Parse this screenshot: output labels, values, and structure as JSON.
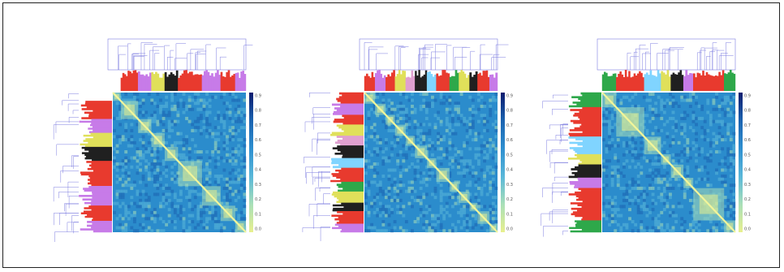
{
  "figure": {
    "background": "#ffffff",
    "border_color": "#222222"
  },
  "chart_data": [
    {
      "type": "heatmap",
      "title": "",
      "subtitle": "",
      "colorbar_ticks": [
        "0.9",
        "0.8",
        "0.7",
        "0.6",
        "0.5",
        "0.4",
        "0.3",
        "0.2",
        "0.1",
        "0.0"
      ],
      "colorscale": [
        "#0d1b6e",
        "#1b63b0",
        "#2e8fd0",
        "#59b7d9",
        "#a8dfb8",
        "#e8f08e"
      ],
      "modules": [
        {
          "color": "#ffffff",
          "size": 6
        },
        {
          "color": "#e83a2e",
          "size": 13
        },
        {
          "color": "#c77be8",
          "size": 10
        },
        {
          "color": "#e0e05a",
          "size": 10
        },
        {
          "color": "#202020",
          "size": 10
        },
        {
          "color": "#e83a2e",
          "size": 18
        },
        {
          "color": "#c77be8",
          "size": 14
        },
        {
          "color": "#e83a2e",
          "size": 11
        },
        {
          "color": "#c77be8",
          "size": 8
        }
      ]
    },
    {
      "type": "heatmap",
      "title": "",
      "subtitle": "",
      "colorbar_ticks": [
        "0.9",
        "0.8",
        "0.7",
        "0.6",
        "0.5",
        "0.4",
        "0.3",
        "0.2",
        "0.1",
        "0.0"
      ],
      "colorscale": [
        "#0d1b6e",
        "#1b63b0",
        "#2e8fd0",
        "#59b7d9",
        "#a8dfb8",
        "#e8f08e"
      ],
      "modules": [
        {
          "color": "#e83a2e",
          "size": 8
        },
        {
          "color": "#c77be8",
          "size": 8
        },
        {
          "color": "#e83a2e",
          "size": 7
        },
        {
          "color": "#e0e05a",
          "size": 8
        },
        {
          "color": "#e0a0d0",
          "size": 7
        },
        {
          "color": "#202020",
          "size": 9
        },
        {
          "color": "#80d4ff",
          "size": 7
        },
        {
          "color": "#e83a2e",
          "size": 10
        },
        {
          "color": "#2ea84a",
          "size": 7
        },
        {
          "color": "#e0e05a",
          "size": 8
        },
        {
          "color": "#202020",
          "size": 6
        },
        {
          "color": "#e83a2e",
          "size": 9
        },
        {
          "color": "#c77be8",
          "size": 6
        }
      ]
    },
    {
      "type": "heatmap",
      "title": "",
      "subtitle": "",
      "colorbar_ticks": [
        "0.9",
        "0.8",
        "0.7",
        "0.6",
        "0.5",
        "0.4",
        "0.3",
        "0.2",
        "0.1",
        "0.0"
      ],
      "colorscale": [
        "#0d1b6e",
        "#1b63b0",
        "#2e8fd0",
        "#59b7d9",
        "#a8dfb8",
        "#e8f08e"
      ],
      "modules": [
        {
          "color": "#2ea84a",
          "size": 10
        },
        {
          "color": "#e83a2e",
          "size": 20
        },
        {
          "color": "#80d4ff",
          "size": 12
        },
        {
          "color": "#e0e05a",
          "size": 7
        },
        {
          "color": "#202020",
          "size": 9
        },
        {
          "color": "#c77be8",
          "size": 7
        },
        {
          "color": "#e83a2e",
          "size": 22
        },
        {
          "color": "#2ea84a",
          "size": 8
        }
      ]
    }
  ]
}
